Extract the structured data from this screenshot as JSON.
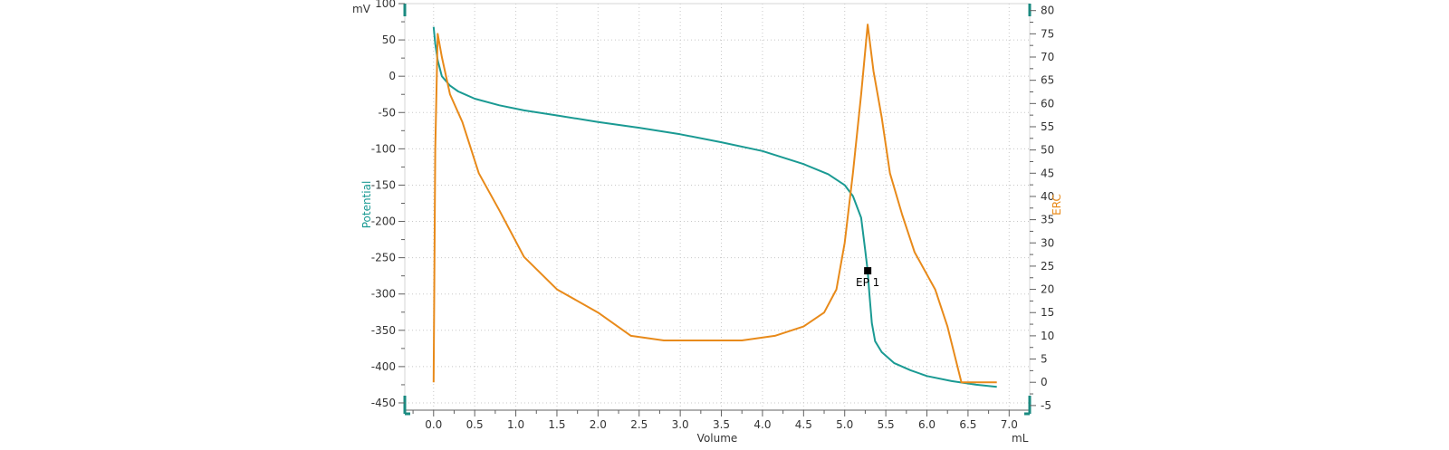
{
  "chart_data": {
    "type": "line",
    "title": "",
    "xlabel": "Volume",
    "x_unit": "mL",
    "y_left_label": "Potential",
    "y_left_unit": "mV",
    "y_right_label": "ERC",
    "xlim": [
      -0.35,
      7.25
    ],
    "ylim_left": [
      -460,
      100
    ],
    "ylim_right": [
      -6,
      81.5
    ],
    "x_ticks": [
      0.0,
      0.5,
      1.0,
      1.5,
      2.0,
      2.5,
      3.0,
      3.5,
      4.0,
      4.5,
      5.0,
      5.5,
      6.0,
      6.5,
      7.0
    ],
    "x_tick_labels": [
      "0.0",
      "0.5",
      "1.0",
      "1.5",
      "2.0",
      "2.5",
      "3.0",
      "3.5",
      "4.0",
      "4.5",
      "5.0",
      "5.5",
      "6.0",
      "6.5",
      "7.0"
    ],
    "y_left_ticks": [
      100,
      50,
      0,
      -50,
      -100,
      -150,
      -200,
      -250,
      -300,
      -350,
      -400,
      -450
    ],
    "y_left_tick_labels": [
      "100",
      "50",
      "0",
      "-50",
      "-100",
      "-150",
      "-200",
      "-250",
      "-300",
      "-350",
      "-400",
      "-450"
    ],
    "y_right_ticks": [
      80,
      75,
      70,
      65,
      60,
      55,
      50,
      45,
      40,
      35,
      30,
      25,
      20,
      15,
      10,
      5,
      0,
      -5
    ],
    "y_right_tick_labels": [
      "80",
      "75",
      "70",
      "65",
      "60",
      "55",
      "50",
      "45",
      "40",
      "35",
      "30",
      "25",
      "20",
      "15",
      "10",
      "5",
      "0",
      "-5"
    ],
    "grid": true,
    "colors": {
      "potential": "#1a9a93",
      "erc": "#e88a1a",
      "axis_tick": "#1a8a80"
    },
    "series": [
      {
        "axis": "left",
        "x": [
          0.0,
          0.02,
          0.05,
          0.1,
          0.2,
          0.3,
          0.5,
          0.8,
          1.1,
          1.5,
          2.0,
          2.5,
          3.0,
          3.5,
          4.0,
          4.5,
          4.8,
          5.0,
          5.1,
          5.2,
          5.25,
          5.28,
          5.3,
          5.33,
          5.37,
          5.45,
          5.6,
          5.8,
          6.0,
          6.3,
          6.6,
          6.85
        ],
        "values": [
          68,
          45,
          22,
          0,
          -13,
          -21,
          -31,
          -40,
          -47,
          -54,
          -63,
          -71,
          -80,
          -91,
          -103,
          -121,
          -135,
          -150,
          -165,
          -195,
          -240,
          -268,
          -300,
          -340,
          -365,
          -380,
          -395,
          -405,
          -413,
          -420,
          -425,
          -428
        ]
      },
      {
        "axis": "right",
        "x": [
          0.0,
          0.02,
          0.05,
          0.1,
          0.2,
          0.35,
          0.55,
          0.8,
          1.1,
          1.5,
          2.0,
          2.4,
          2.8,
          3.3,
          3.75,
          4.15,
          4.5,
          4.75,
          4.9,
          5.0,
          5.1,
          5.2,
          5.28,
          5.35,
          5.45,
          5.55,
          5.7,
          5.85,
          6.1,
          6.25,
          6.42,
          6.6,
          6.85
        ],
        "values": [
          0,
          50,
          75,
          70,
          62,
          56,
          45,
          37,
          27,
          20,
          15,
          10,
          9,
          9,
          9,
          10,
          12,
          15,
          20,
          30,
          45,
          62,
          77,
          67,
          57,
          45,
          36,
          28,
          20,
          12,
          0,
          0,
          0
        ]
      }
    ],
    "annotations": [
      {
        "label": "EP 1",
        "x": 5.28,
        "y_left": -268
      }
    ]
  }
}
